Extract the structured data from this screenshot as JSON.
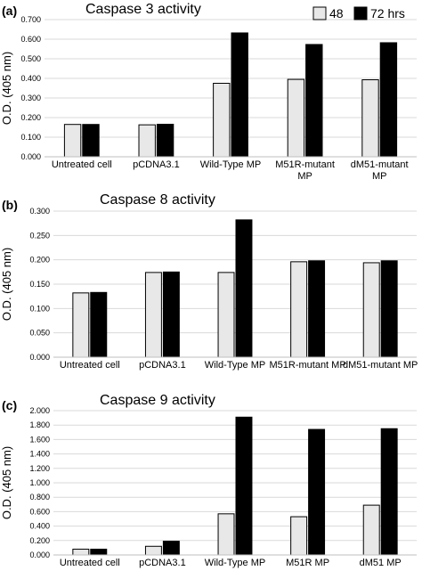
{
  "legend": {
    "entries": [
      {
        "label": "48",
        "color": "#e8e8e8"
      },
      {
        "label": "72 hrs",
        "color": "#000000"
      }
    ]
  },
  "colors": {
    "series_48": "#e8e8e8",
    "series_72": "#000000",
    "gridline": "#d9d9d9",
    "bar_stroke": "#000000"
  },
  "chart_data": [
    {
      "type": "bar",
      "panel_label": "(a)",
      "title": "Caspase 3 activity",
      "ylabel": "O.D. (405 nm)",
      "xlabel": "",
      "categories": [
        "Untreated cell",
        "pCDNA3.1",
        "Wild-Type MP",
        "M51R-mutant MP",
        "dM51-mutant MP"
      ],
      "ylim": [
        0,
        0.7
      ],
      "yticks": [
        "0.000",
        "0.100",
        "0.200",
        "0.300",
        "0.400",
        "0.500",
        "0.600",
        "0.700"
      ],
      "grid": true,
      "legend_position": "top-right",
      "series": [
        {
          "name": "48",
          "values": [
            0.165,
            0.163,
            0.375,
            0.395,
            0.393
          ]
        },
        {
          "name": "72 hrs",
          "values": [
            0.165,
            0.166,
            0.632,
            0.573,
            0.582
          ]
        }
      ]
    },
    {
      "type": "bar",
      "panel_label": "(b)",
      "title": "Caspase 8 activity",
      "ylabel": "O.D. (405 nm)",
      "xlabel": "",
      "categories": [
        "Untreated cell",
        "pCDNA3.1",
        "Wild-Type MP",
        "M51R-mutant MP",
        "dM51-mutant MP"
      ],
      "ylim": [
        0,
        0.3
      ],
      "yticks": [
        "0.000",
        "0.050",
        "0.100",
        "0.150",
        "0.200",
        "0.250",
        "0.300"
      ],
      "grid": true,
      "series": [
        {
          "name": "48",
          "values": [
            0.132,
            0.174,
            0.174,
            0.196,
            0.194
          ]
        },
        {
          "name": "72 hrs",
          "values": [
            0.133,
            0.175,
            0.282,
            0.198,
            0.198
          ]
        }
      ]
    },
    {
      "type": "bar",
      "panel_label": "(c)",
      "title": "Caspase 9 activity",
      "ylabel": "O.D. (405 nm)",
      "xlabel": "",
      "categories": [
        "Untreated cell",
        "pCDNA3.1",
        "Wild-Type MP",
        "M51R  MP",
        "dM51 MP"
      ],
      "ylim": [
        0,
        2.0
      ],
      "yticks": [
        "0.000",
        "0.200",
        "0.400",
        "0.600",
        "0.800",
        "1.000",
        "1.200",
        "1.400",
        "1.600",
        "1.800",
        "2.000"
      ],
      "grid": true,
      "series": [
        {
          "name": "48",
          "values": [
            0.08,
            0.12,
            0.57,
            0.53,
            0.69
          ]
        },
        {
          "name": "72 hrs",
          "values": [
            0.08,
            0.19,
            1.91,
            1.74,
            1.75
          ]
        }
      ]
    }
  ]
}
